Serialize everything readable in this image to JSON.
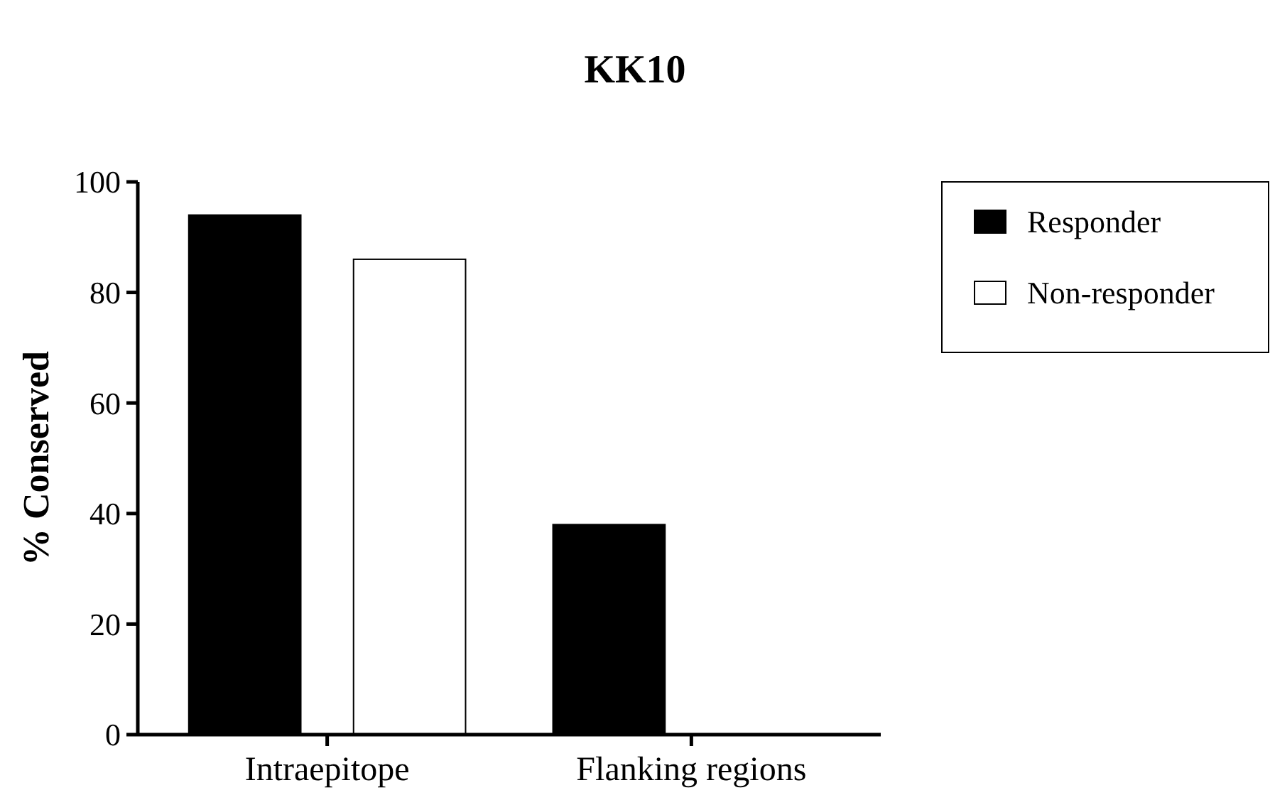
{
  "chart_data": {
    "type": "bar",
    "title": "KK10",
    "ylabel": "% Conserved",
    "categories": [
      "Intraepitope",
      "Flanking regions"
    ],
    "series": [
      {
        "name": "Responder",
        "color": "#000000",
        "values": [
          94,
          38
        ]
      },
      {
        "name": "Non-responder",
        "color": "#ffffff",
        "values": [
          86,
          0
        ]
      }
    ],
    "ylim": [
      0,
      100
    ],
    "yticks": [
      0,
      20,
      40,
      60,
      80,
      100
    ],
    "grid": false,
    "legend": "top right"
  }
}
